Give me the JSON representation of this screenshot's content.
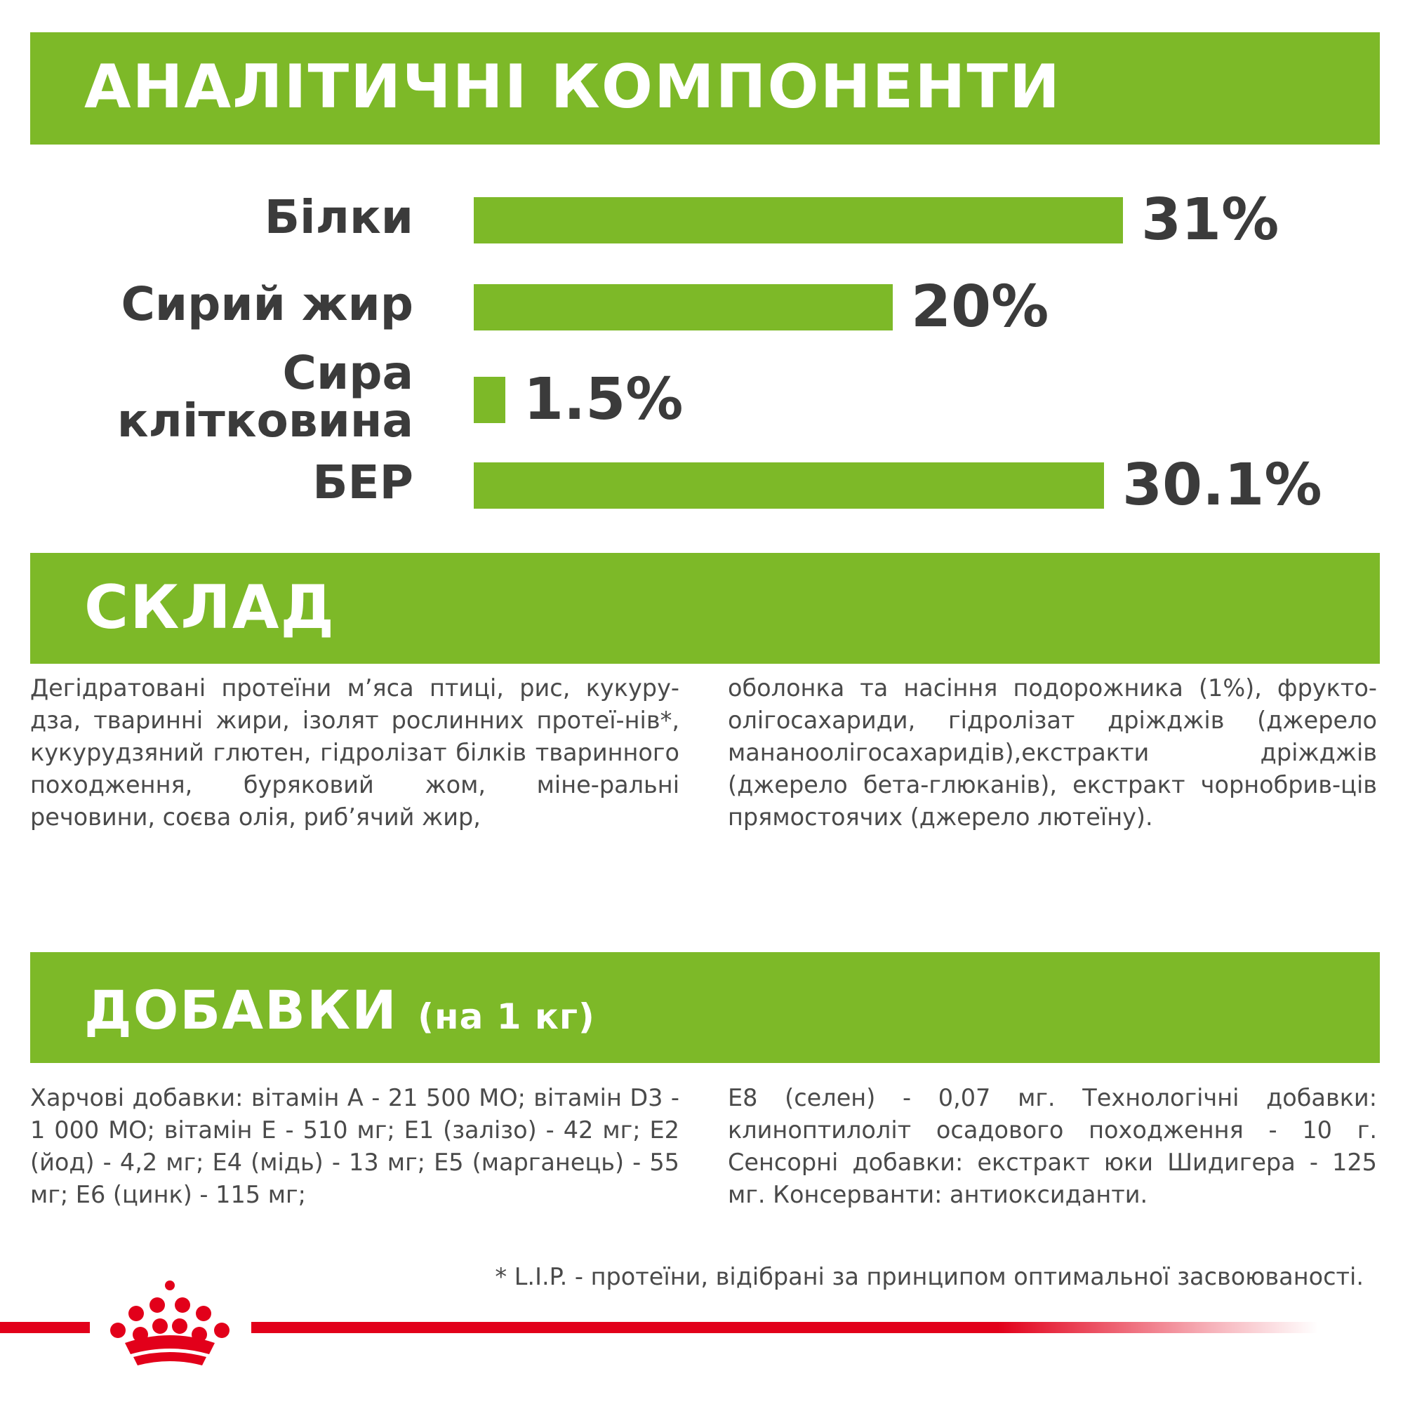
{
  "sections": {
    "analytics_title": "АНАЛІТИЧНІ КОМПОНЕНТИ",
    "composition_title": "СКЛАД",
    "additives_title": "ДОБАВКИ",
    "additives_subtitle": "(на 1 кг)"
  },
  "chart_data": {
    "type": "bar",
    "orientation": "horizontal",
    "categories": [
      "Білки",
      "Сирий жир",
      "Сира клітковина",
      "БЕР"
    ],
    "category_lines": [
      [
        "Білки"
      ],
      [
        "Сирий жир"
      ],
      [
        "Сира",
        "клітковина"
      ],
      [
        "БЕР"
      ]
    ],
    "values": [
      31,
      20,
      1.5,
      30.1
    ],
    "value_labels": [
      "31%",
      "20%",
      "1.5%",
      "30.1%"
    ],
    "unit": "%",
    "xlim": [
      0,
      31
    ],
    "grid": false,
    "legend": "none",
    "bar_color": "#7db928"
  },
  "composition": {
    "left": "Дегідратовані протеїни м’яса птиці, рис, кукуру-дза, тваринні жири, ізолят рослинних протеї-нів*, кукурудзяний глютен, гідролізат білків тваринного походження, буряковий жом, міне-ральні речовини, соєва олія, риб’ячий жир,",
    "right": "оболонка та насіння подорожника (1%), фрукто-олігосахариди, гідролізат дріжджів (джерело мананоолігосахаридів),екстракти дріжджів (джерело бета-глюканів), екстракт чорнобрив-ців прямостоячих (джерело лютеїну)."
  },
  "additives": {
    "left": "Харчові добавки: вітамін A - 21 500 МО; вітамін D3 - 1 000 МО; вітамін E - 510 мг; E1 (залізо) - 42 мг; E2 (йод) - 4,2 мг; E4 (мідь) - 13 мг; E5 (марганець) - 55 мг; E6 (цинк) - 115 мг;",
    "right": "E8 (селен) - 0,07 мг. Технологічні добавки: клиноптилоліт осадового походження - 10 г. Сенсорні добавки: екстракт юки Шидигера - 125 мг. Консерванти: антиоксиданти."
  },
  "footnote": "* L.I.P. - протеїни, відібрані за принципом оптимальної засвоюваності.",
  "brand": {
    "logo_icon": "royal-canin-crown-icon",
    "accent": "#e2001a",
    "green": "#7db928"
  }
}
